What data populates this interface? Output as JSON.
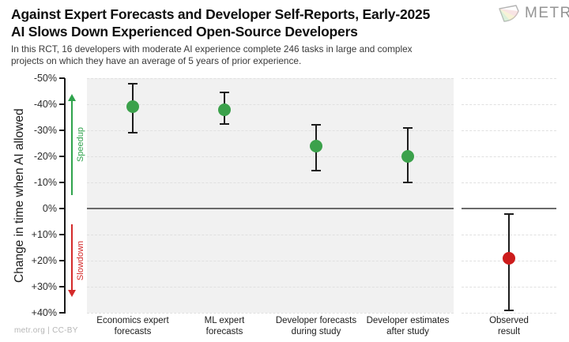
{
  "header": {
    "title_line1": "Against Expert Forecasts and Developer Self-Reports, Early-2025",
    "title_line2": "AI Slows Down Experienced Open-Source Developers",
    "subtitle_line1": "In this RCT, 16 developers with moderate AI experience complete 246 tasks in large and complex",
    "subtitle_line2": "projects on which they have an average of 5 years of prior experience.",
    "logo_text": "METR"
  },
  "footer": {
    "credit": "metr.org  |  CC-BY"
  },
  "colors": {
    "green_point": "#3ba14b",
    "red_point": "#cc1c1c",
    "speedup_arrow": "#2fa34c",
    "slowdown_arrow": "#d42a2a",
    "errorbar": "#1c1c1c",
    "panel_bg": "#f1f1f1",
    "gridline": "#e0e0e0",
    "zero_line": "#6a6a6a"
  },
  "chart_data": {
    "type": "scatter",
    "title": "Against Expert Forecasts and Developer Self-Reports, Early-2025 AI Slows Down Experienced Open-Source Developers",
    "ylabel": "Change in time when AI allowed",
    "xlabel": "",
    "ylim": [
      -50,
      40
    ],
    "y_axis_inverted": true,
    "grid": "horizontal dashed",
    "legend": "none",
    "yticks": [
      {
        "value": -50,
        "label": "-50%"
      },
      {
        "value": -40,
        "label": "-40%"
      },
      {
        "value": -30,
        "label": "-30%"
      },
      {
        "value": -20,
        "label": "-20%"
      },
      {
        "value": -10,
        "label": "-10%"
      },
      {
        "value": 0,
        "label": "0%"
      },
      {
        "value": 10,
        "label": "+10%"
      },
      {
        "value": 20,
        "label": "+20%"
      },
      {
        "value": 30,
        "label": "+30%"
      },
      {
        "value": 40,
        "label": "+40%"
      }
    ],
    "annotations": {
      "speedup": {
        "label": "Speedup",
        "direction": "up",
        "from_pct": -5,
        "to_pct": -44,
        "color": "#2fa34c"
      },
      "slowdown": {
        "label": "Slowdown",
        "direction": "down",
        "from_pct": 6,
        "to_pct": 34,
        "color": "#d42a2a"
      }
    },
    "categories": [
      "Economics expert forecasts",
      "ML expert forecasts",
      "Developer forecasts during study",
      "Developer estimates after study",
      "Observed result"
    ],
    "points": [
      {
        "category_lines": "Economics expert\nforecasts",
        "panel": "main",
        "column": 0,
        "value": -39,
        "ci_low": -48,
        "ci_high": -29,
        "color": "#3ba14b"
      },
      {
        "category_lines": "ML expert\nforecasts",
        "panel": "main",
        "column": 1,
        "value": -38,
        "ci_low": -44.5,
        "ci_high": -32.5,
        "color": "#3ba14b"
      },
      {
        "category_lines": "Developer forecasts\nduring study",
        "panel": "main",
        "column": 2,
        "value": -24,
        "ci_low": -32,
        "ci_high": -14.5,
        "color": "#3ba14b"
      },
      {
        "category_lines": "Developer estimates\nafter study",
        "panel": "main",
        "column": 3,
        "value": -20,
        "ci_low": -31,
        "ci_high": -10,
        "color": "#3ba14b"
      },
      {
        "category_lines": "Observed\nresult",
        "panel": "observed",
        "column": 0,
        "value": 19,
        "ci_low": 2,
        "ci_high": 39,
        "color": "#cc1c1c"
      }
    ]
  }
}
